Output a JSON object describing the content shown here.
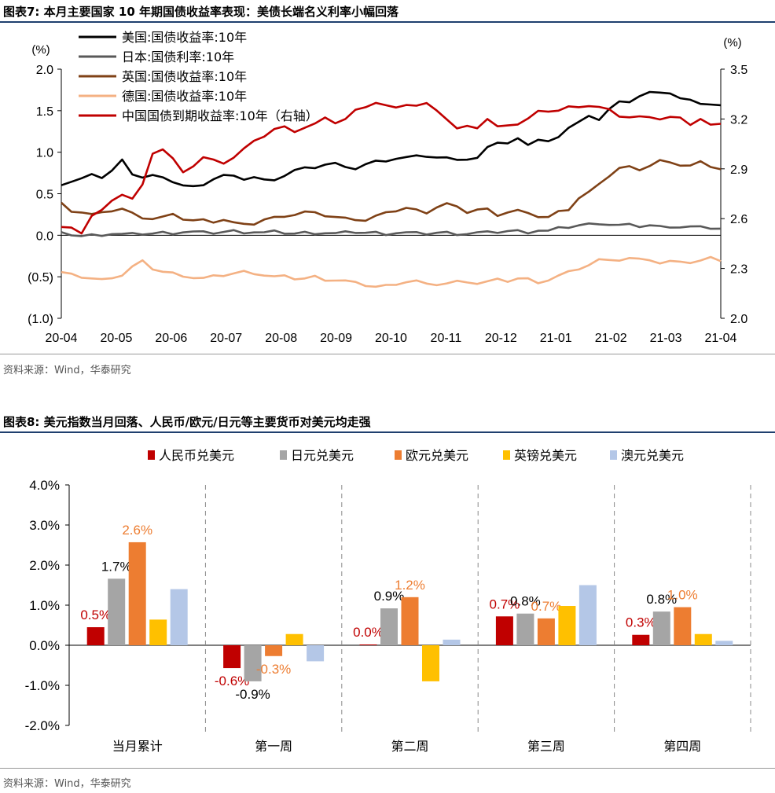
{
  "figure7": {
    "title": "图表7:  本月主要国家 10 年期国债收益率表现：美债长端名义利率小幅回落",
    "source": "资料来源：Wind，华泰研究",
    "chart_data": {
      "type": "line",
      "title": "本月主要国家 10 年期国债收益率表现：美债长端名义利率小幅回落",
      "left_unit": "(%)",
      "right_unit": "(%)",
      "left_ylim": [
        -1.0,
        2.0
      ],
      "right_ylim": [
        2.0,
        3.5
      ],
      "left_ticks": [
        "2.0",
        "1.5",
        "1.0",
        "0.5",
        "0.0",
        "(0.5)",
        "(1.0)"
      ],
      "right_ticks": [
        "3.5",
        "3.2",
        "2.9",
        "2.6",
        "2.3",
        "2.0"
      ],
      "x_labels": [
        "20-04",
        "20-05",
        "20-06",
        "20-07",
        "20-08",
        "20-09",
        "20-10",
        "20-11",
        "20-12",
        "21-01",
        "21-02",
        "21-03",
        "21-04"
      ],
      "series": [
        {
          "name": "美国:国债收益率:10年",
          "color": "#000000",
          "axis": "left",
          "values": [
            0.62,
            0.65,
            0.68,
            0.72,
            0.7,
            0.78,
            0.9,
            0.75,
            0.7,
            0.72,
            0.68,
            0.65,
            0.6,
            0.58,
            0.62,
            0.68,
            0.72,
            0.7,
            0.68,
            0.7,
            0.66,
            0.68,
            0.72,
            0.78,
            0.8,
            0.82,
            0.85,
            0.86,
            0.84,
            0.8,
            0.85,
            0.88,
            0.9,
            0.92,
            0.93,
            0.98,
            0.95,
            0.93,
            0.92,
            0.92,
            0.91,
            0.92,
            1.08,
            1.12,
            1.1,
            1.15,
            1.1,
            1.15,
            1.12,
            1.2,
            1.3,
            1.36,
            1.42,
            1.4,
            1.52,
            1.6,
            1.62,
            1.68,
            1.72,
            1.7,
            1.72,
            1.65,
            1.62,
            1.6,
            1.58,
            1.56
          ]
        },
        {
          "name": "日本:国债利率:10年",
          "color": "#595959",
          "axis": "left",
          "values": [
            0.02,
            0.01,
            -0.01,
            0.0,
            0.01,
            0.02,
            0.01,
            0.01,
            0.02,
            0.02,
            0.03,
            0.03,
            0.04,
            0.04,
            0.03,
            0.03,
            0.04,
            0.05,
            0.04,
            0.04,
            0.03,
            0.04,
            0.03,
            0.02,
            0.03,
            0.03,
            0.03,
            0.02,
            0.03,
            0.04,
            0.03,
            0.03,
            0.02,
            0.03,
            0.03,
            0.02,
            0.02,
            0.03,
            0.03,
            0.02,
            0.02,
            0.03,
            0.03,
            0.04,
            0.05,
            0.05,
            0.04,
            0.06,
            0.05,
            0.08,
            0.1,
            0.12,
            0.13,
            0.15,
            0.13,
            0.12,
            0.12,
            0.11,
            0.12,
            0.1,
            0.11,
            0.1,
            0.1,
            0.09,
            0.09,
            0.08
          ]
        },
        {
          "name": "英国:国债收益率:10年",
          "color": "#7f4116",
          "axis": "left",
          "values": [
            0.38,
            0.3,
            0.28,
            0.25,
            0.26,
            0.3,
            0.32,
            0.26,
            0.22,
            0.2,
            0.22,
            0.24,
            0.2,
            0.18,
            0.18,
            0.17,
            0.19,
            0.15,
            0.12,
            0.14,
            0.19,
            0.21,
            0.24,
            0.25,
            0.28,
            0.26,
            0.24,
            0.22,
            0.2,
            0.2,
            0.18,
            0.23,
            0.26,
            0.3,
            0.33,
            0.3,
            0.28,
            0.34,
            0.38,
            0.33,
            0.28,
            0.31,
            0.31,
            0.25,
            0.28,
            0.3,
            0.25,
            0.23,
            0.22,
            0.28,
            0.32,
            0.45,
            0.52,
            0.6,
            0.72,
            0.81,
            0.82,
            0.8,
            0.84,
            0.9,
            0.86,
            0.85,
            0.84,
            0.88,
            0.84,
            0.8
          ]
        },
        {
          "name": "德国:国债收益率:10年",
          "color": "#f4b183",
          "axis": "left",
          "values": [
            -0.45,
            -0.48,
            -0.5,
            -0.52,
            -0.54,
            -0.5,
            -0.48,
            -0.38,
            -0.32,
            -0.4,
            -0.44,
            -0.46,
            -0.48,
            -0.51,
            -0.52,
            -0.5,
            -0.48,
            -0.46,
            -0.44,
            -0.45,
            -0.48,
            -0.5,
            -0.5,
            -0.52,
            -0.52,
            -0.5,
            -0.53,
            -0.54,
            -0.55,
            -0.58,
            -0.6,
            -0.62,
            -0.61,
            -0.58,
            -0.56,
            -0.55,
            -0.6,
            -0.59,
            -0.58,
            -0.56,
            -0.55,
            -0.58,
            -0.56,
            -0.54,
            -0.55,
            -0.52,
            -0.53,
            -0.56,
            -0.54,
            -0.49,
            -0.45,
            -0.4,
            -0.36,
            -0.3,
            -0.28,
            -0.3,
            -0.28,
            -0.3,
            -0.29,
            -0.34,
            -0.32,
            -0.3,
            -0.33,
            -0.31,
            -0.28,
            -0.3
          ]
        },
        {
          "name": "中国国债到期收益率:10年（右轴）",
          "color": "#c00000",
          "axis": "right",
          "values": [
            2.55,
            2.54,
            2.52,
            2.62,
            2.65,
            2.7,
            2.75,
            2.72,
            2.8,
            3.0,
            3.02,
            2.96,
            2.87,
            2.92,
            2.97,
            2.95,
            2.94,
            2.97,
            3.02,
            3.06,
            3.1,
            3.14,
            3.15,
            3.13,
            3.15,
            3.17,
            3.2,
            3.18,
            3.2,
            3.25,
            3.28,
            3.3,
            3.28,
            3.26,
            3.29,
            3.28,
            3.29,
            3.26,
            3.2,
            3.14,
            3.15,
            3.15,
            3.2,
            3.15,
            3.17,
            3.17,
            3.2,
            3.24,
            3.25,
            3.25,
            3.27,
            3.28,
            3.28,
            3.27,
            3.25,
            3.22,
            3.21,
            3.21,
            3.22,
            3.2,
            3.21,
            3.2,
            3.17,
            3.2,
            3.16,
            3.18
          ]
        }
      ]
    }
  },
  "figure8": {
    "title": "图表8:  美元指数当月回落、人民币/欧元/日元等主要货币对美元均走强",
    "source": "资料来源：Wind，华泰研究",
    "chart_data": {
      "type": "bar",
      "title": "美元指数当月回落、人民币/欧元/日元等主要货币对美元均走强",
      "categories": [
        "当月累计",
        "第一周",
        "第二周",
        "第三周",
        "第四周"
      ],
      "ylim": [
        -2.0,
        4.0
      ],
      "y_ticks": [
        "4.0%",
        "3.0%",
        "2.0%",
        "1.0%",
        "0.0%",
        "-1.0%",
        "-2.0%"
      ],
      "series": [
        {
          "name": "人民币兑美元",
          "color": "#c00000",
          "values": [
            0.45,
            -0.57,
            0.02,
            0.72,
            0.26
          ],
          "labels": [
            "0.5%",
            "-0.6%",
            "0.0%",
            "0.7%",
            "0.3%"
          ],
          "label_color": "#c00000"
        },
        {
          "name": "日元兑美元",
          "color": "#a5a5a5",
          "values": [
            1.66,
            -0.9,
            0.92,
            0.79,
            0.84
          ],
          "labels": [
            "1.7%",
            "-0.9%",
            "0.9%",
            "0.8%",
            "0.8%"
          ],
          "label_color": "#000000"
        },
        {
          "name": "欧元兑美元",
          "color": "#ed7d31",
          "values": [
            2.57,
            -0.27,
            1.2,
            0.67,
            0.95
          ],
          "labels": [
            "2.6%",
            "-0.3%",
            "1.2%",
            "0.7%",
            "1.0%"
          ],
          "label_color": "#ed7d31"
        },
        {
          "name": "英镑兑美元",
          "color": "#ffc000",
          "values": [
            0.64,
            0.28,
            -0.9,
            0.98,
            0.28
          ],
          "labels": [],
          "label_color": "#ffc000"
        },
        {
          "name": "澳元兑美元",
          "color": "#b4c7e7",
          "values": [
            1.4,
            -0.4,
            0.14,
            1.5,
            0.11
          ],
          "labels": [],
          "label_color": "#b4c7e7"
        }
      ]
    }
  }
}
